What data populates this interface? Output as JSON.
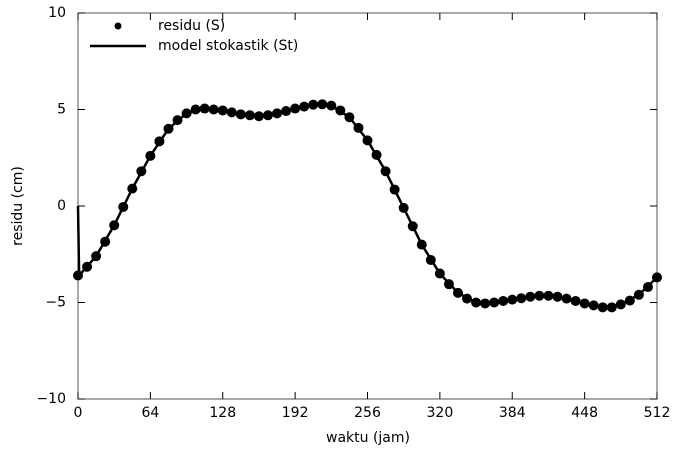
{
  "chart_data": {
    "type": "scatter",
    "xlabel": "waktu (jam)",
    "ylabel": "residu (cm)",
    "xlim": [
      0,
      512
    ],
    "xticks": [
      0,
      64,
      128,
      192,
      256,
      320,
      384,
      448,
      512
    ],
    "ylim": [
      -10,
      10
    ],
    "yticks": [
      {
        "value": -10,
        "label": "−10"
      },
      {
        "value": -5,
        "label": "−5"
      },
      0,
      5,
      10
    ],
    "legend": "upper left",
    "series": [
      {
        "name": "residu (S)",
        "type": "scatter",
        "color": "#000000",
        "x": [
          0,
          8,
          16,
          24,
          32,
          40,
          48,
          56,
          64,
          72,
          80,
          88,
          96,
          104,
          112,
          120,
          128,
          136,
          144,
          152,
          160,
          168,
          176,
          184,
          192,
          200,
          208,
          216,
          224,
          232,
          240,
          248,
          256,
          264,
          272,
          280,
          288,
          296,
          304,
          312,
          320,
          328,
          336,
          344,
          352,
          360,
          368,
          376,
          384,
          392,
          400,
          408,
          416,
          424,
          432,
          440,
          448,
          456,
          464,
          472,
          480,
          488,
          496,
          504,
          512
        ],
        "values": [
          -3.6,
          -3.15,
          -2.6,
          -1.85,
          -1.0,
          -0.05,
          0.9,
          1.8,
          2.6,
          3.35,
          4.0,
          4.45,
          4.8,
          5.0,
          5.05,
          5.0,
          4.95,
          4.85,
          4.75,
          4.7,
          4.65,
          4.7,
          4.8,
          4.92,
          5.05,
          5.15,
          5.25,
          5.27,
          5.2,
          4.95,
          4.6,
          4.05,
          3.4,
          2.65,
          1.8,
          0.85,
          -0.1,
          -1.05,
          -2.0,
          -2.8,
          -3.5,
          -4.05,
          -4.5,
          -4.8,
          -5.0,
          -5.05,
          -5.0,
          -4.92,
          -4.85,
          -4.78,
          -4.7,
          -4.65,
          -4.65,
          -4.7,
          -4.8,
          -4.92,
          -5.05,
          -5.15,
          -5.25,
          -5.25,
          -5.1,
          -4.9,
          -4.6,
          -4.2,
          -3.7
        ]
      },
      {
        "name": "model stokastik (St)",
        "type": "line",
        "color": "#000000",
        "x": [
          0,
          1,
          16,
          32,
          48,
          64,
          80,
          96,
          112,
          128,
          144,
          160,
          176,
          192,
          208,
          224,
          240,
          256,
          272,
          288,
          304,
          320,
          336,
          352,
          368,
          384,
          400,
          416,
          432,
          448,
          464,
          480,
          496,
          512
        ],
        "values": [
          0,
          -3.6,
          -2.6,
          -1.0,
          0.9,
          2.6,
          4.0,
          4.8,
          5.05,
          4.95,
          4.75,
          4.65,
          4.8,
          5.05,
          5.25,
          5.2,
          4.6,
          3.4,
          1.8,
          -0.1,
          -2.0,
          -3.5,
          -4.5,
          -5.0,
          -5.0,
          -4.85,
          -4.7,
          -4.65,
          -4.8,
          -5.05,
          -5.25,
          -5.1,
          -4.6,
          -3.7
        ]
      }
    ]
  }
}
